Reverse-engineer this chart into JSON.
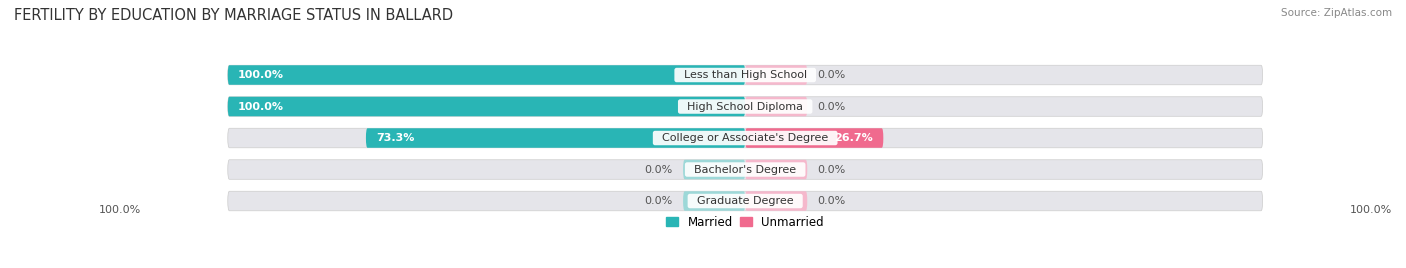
{
  "title": "FERTILITY BY EDUCATION BY MARRIAGE STATUS IN BALLARD",
  "source": "Source: ZipAtlas.com",
  "categories": [
    "Less than High School",
    "High School Diploma",
    "College or Associate's Degree",
    "Bachelor's Degree",
    "Graduate Degree"
  ],
  "married": [
    100.0,
    100.0,
    73.3,
    0.0,
    0.0
  ],
  "unmarried": [
    0.0,
    0.0,
    26.7,
    0.0,
    0.0
  ],
  "married_color": "#29b5b5",
  "unmarried_color": "#f06a8e",
  "married_light": "#9dd8d8",
  "unmarried_light": "#f5b8cc",
  "bar_bg": "#e5e5ea",
  "fig_bg": "#ffffff",
  "title_fontsize": 10.5,
  "label_fontsize": 8,
  "val_fontsize": 8,
  "source_fontsize": 7.5,
  "legend_fontsize": 8.5,
  "x_left_label": "100.0%",
  "x_right_label": "100.0%"
}
